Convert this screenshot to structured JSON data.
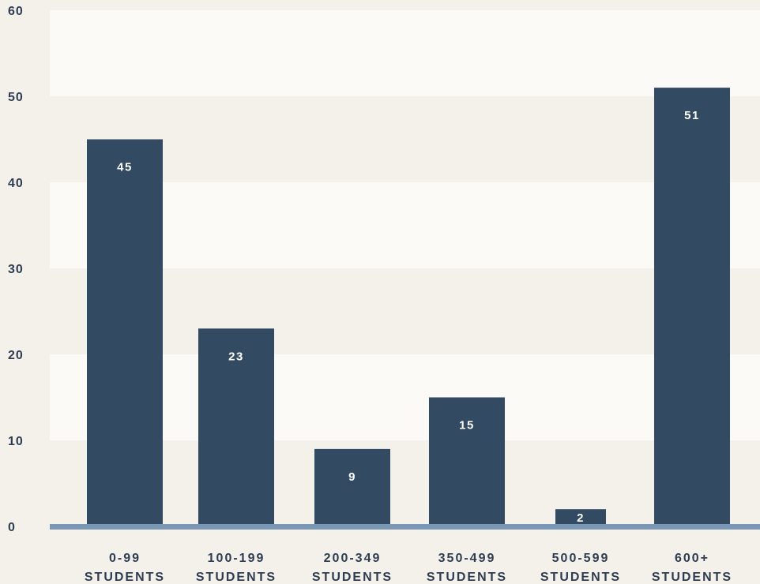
{
  "colors": {
    "background": "#f4f1ea",
    "band_light": "#fbfaf6",
    "band_dark": "#f4f1ea",
    "bar": "#334a63",
    "baseline": "#7b97b6",
    "label_text": "#2e3d52",
    "data_label_text": "#ffffff"
  },
  "chart_data": {
    "type": "bar",
    "categories": [
      [
        "0-99",
        "STUDENTS"
      ],
      [
        "100-199",
        "STUDENTS"
      ],
      [
        "200-349",
        "STUDENTS"
      ],
      [
        "350-499",
        "STUDENTS"
      ],
      [
        "500-599",
        "STUDENTS"
      ],
      [
        "600+",
        "STUDENTS"
      ]
    ],
    "values": [
      45,
      23,
      9,
      15,
      2,
      51
    ],
    "data_labels": [
      "45",
      "23",
      "9",
      "15",
      "2",
      "51"
    ],
    "title": "",
    "xlabel": "",
    "ylabel": "",
    "ylim": [
      0,
      60
    ],
    "yticks": [
      0,
      10,
      20,
      30,
      40,
      50,
      60
    ],
    "ytick_labels": [
      "0",
      "10",
      "20",
      "30",
      "40",
      "50",
      "60"
    ],
    "grid": "alternating horizontal bands",
    "legend": "none"
  }
}
